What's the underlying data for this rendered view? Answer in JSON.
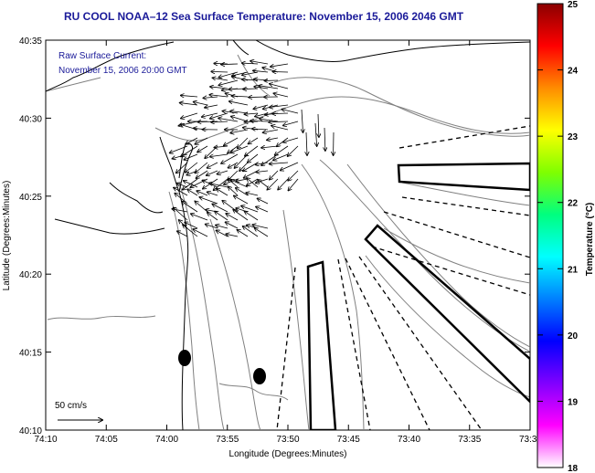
{
  "title": "RU COOL  NOAA–12  Sea Surface Temperature:  November 15, 2006 2046 GMT",
  "annotation": {
    "line1": "Raw Surface Current:",
    "line2": "November 15, 2006 20:00 GMT"
  },
  "axes": {
    "xlabel": "Longitude (Degrees:Minutes)",
    "ylabel": "Latitude (Degrees:Minutes)",
    "x_ticks": [
      "74:10",
      "74:05",
      "74:00",
      "73:55",
      "73:50",
      "73:45",
      "73:40",
      "73:35",
      "73:3"
    ],
    "y_ticks": [
      "40:35",
      "40:30",
      "40:25",
      "40:20",
      "40:15",
      "40:10"
    ]
  },
  "scale_arrow": {
    "label": "50 cm/s"
  },
  "colorbar": {
    "label": "Temperature (°C)",
    "ticks": [
      "25",
      "24",
      "23",
      "22",
      "21",
      "20",
      "19",
      "18"
    ],
    "colors": [
      "#8b0000",
      "#ff0000",
      "#ff8c00",
      "#ffff00",
      "#7fff00",
      "#00ff7f",
      "#00ffff",
      "#0080ff",
      "#0000ff",
      "#8000ff",
      "#ff00ff",
      "#ffffff"
    ]
  },
  "colors": {
    "title": "#1a1a99",
    "frame": "#000000",
    "contour": "#808080",
    "land": "#000000"
  }
}
